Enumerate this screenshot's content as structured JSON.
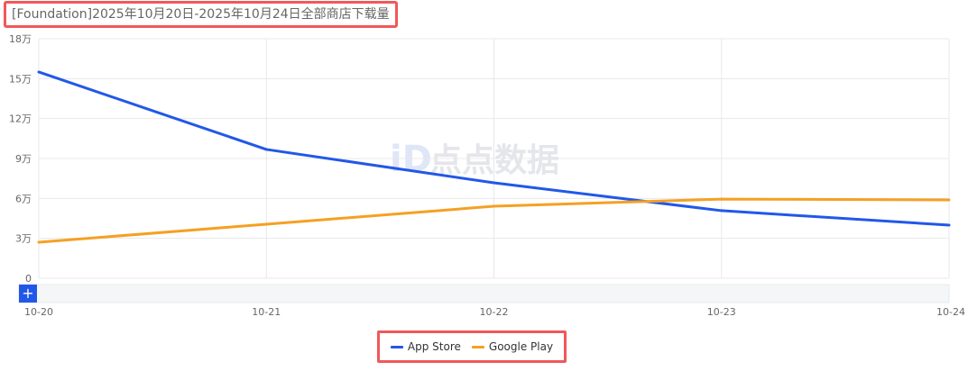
{
  "title": "[Foundation]2025年10月20日-2025年10月24日全部商店下载量",
  "watermark": "点点数据",
  "zoom_button_label": "+",
  "chart_data": {
    "type": "line",
    "title": "[Foundation]2025年10月20日-2025年10月24日全部商店下载量",
    "categories": [
      "10-20",
      "10-21",
      "10-22",
      "10-23",
      "10-24"
    ],
    "ylim": [
      0,
      180000
    ],
    "yticks": [
      0,
      30000,
      60000,
      90000,
      120000,
      150000,
      180000
    ],
    "ytick_labels": [
      "0",
      "3万",
      "6万",
      "9万",
      "12万",
      "15万",
      "18万"
    ],
    "grid": true,
    "legend_position": "bottom",
    "series": [
      {
        "name": "App Store",
        "color": "#2158e8",
        "values": [
          155000,
          96800,
          71700,
          50800,
          39900
        ]
      },
      {
        "name": "Google Play",
        "color": "#f5a023",
        "values": [
          27100,
          40600,
          54100,
          59500,
          58900
        ]
      }
    ]
  }
}
